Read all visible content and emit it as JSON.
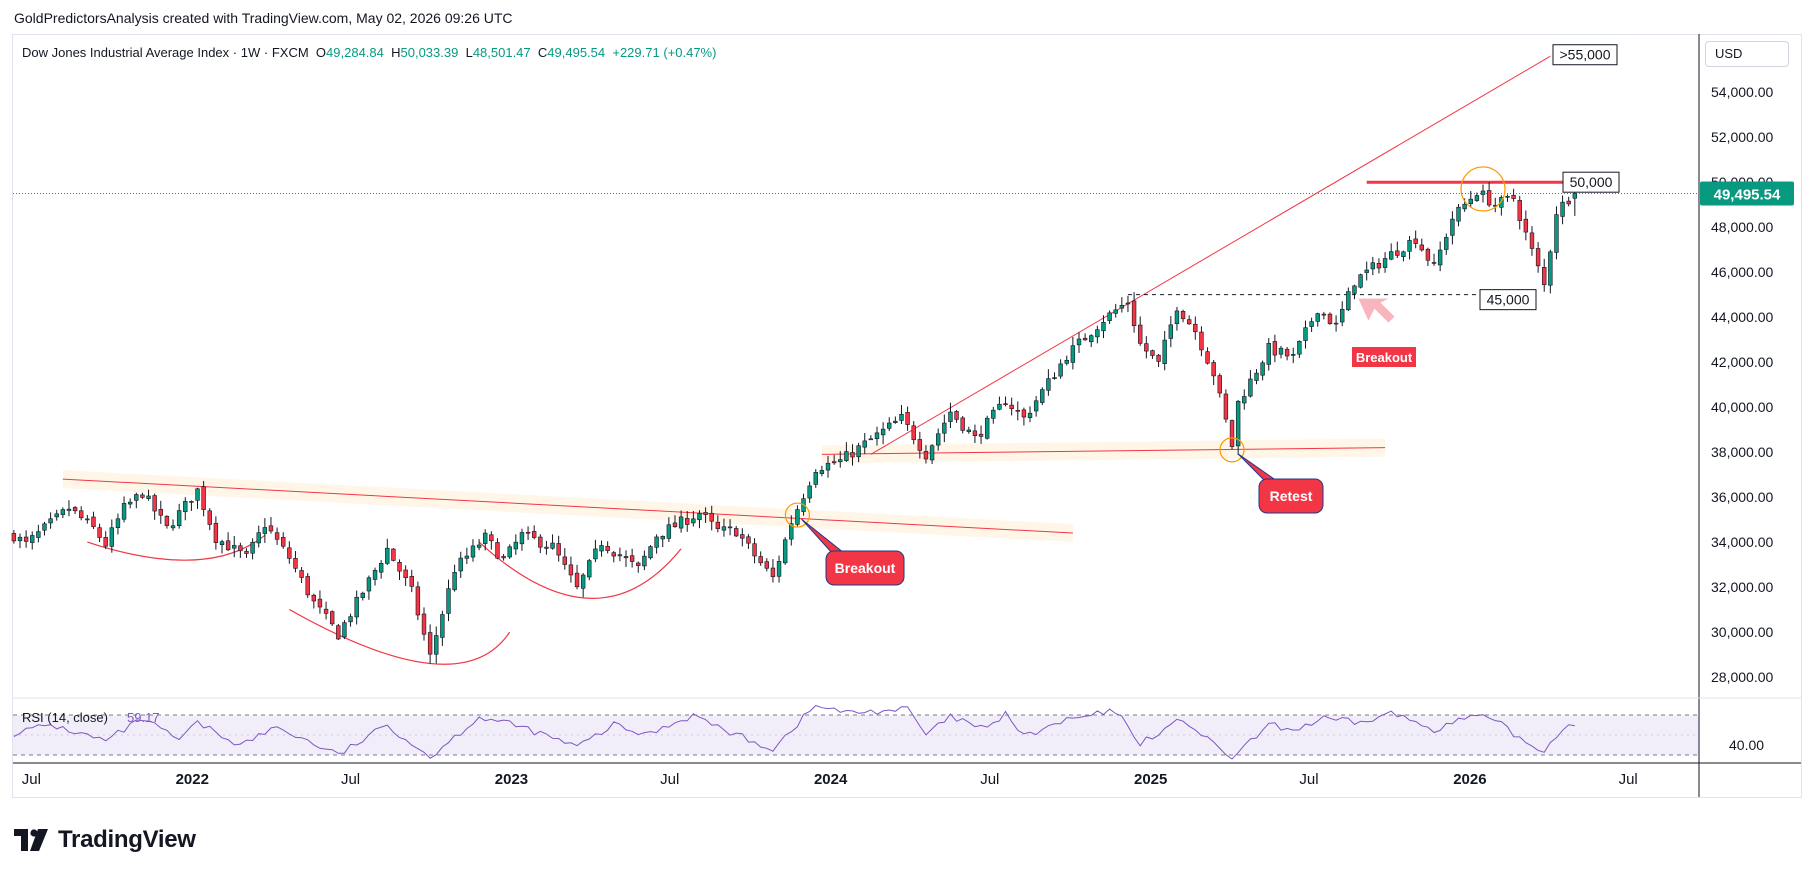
{
  "header": {
    "attribution": "GoldPredictorsAnalysis created with TradingView.com, May 02, 2026 09:26 UTC"
  },
  "legend": {
    "symbol": "Dow Jones Industrial Average Index",
    "interval": "1W",
    "source": "FXCM",
    "o_label": "O",
    "open": "49,284.84",
    "h_label": "H",
    "high": "50,033.39",
    "l_label": "L",
    "low": "48,501.47",
    "c_label": "C",
    "close": "49,495.54",
    "change": "+229.71 (+0.47%)"
  },
  "price_axis": {
    "currency": "USD",
    "ticks": [
      28000,
      30000,
      32000,
      34000,
      36000,
      38000,
      40000,
      42000,
      44000,
      46000,
      48000,
      50000,
      52000,
      54000
    ],
    "tick_labels": [
      "28,000.00",
      "30,000.00",
      "32,000.00",
      "34,000.00",
      "36,000.00",
      "38,000.00",
      "40,000.00",
      "42,000.00",
      "44,000.00",
      "46,000.00",
      "48,000.00",
      "50,000.00",
      "52,000.00",
      "54,000.00"
    ],
    "last_price_label": "49,495.54",
    "last_price": 49495.54
  },
  "time_axis": {
    "labels": [
      "Jul",
      "2022",
      "Jul",
      "2023",
      "Jul",
      "2024",
      "Jul",
      "2025",
      "Jul",
      "2026",
      "Jul"
    ],
    "dates": [
      "2021-07-01",
      "2022-01-01",
      "2022-07-01",
      "2023-01-01",
      "2023-07-01",
      "2024-01-01",
      "2024-07-01",
      "2025-01-01",
      "2025-07-01",
      "2026-01-01",
      "2026-07-01"
    ]
  },
  "chart_data": {
    "type": "candlestick",
    "title": "Dow Jones Industrial Average Index",
    "interval": "1W",
    "y_range": [
      27200,
      56500
    ],
    "x_range": [
      "2021-06-10",
      "2026-09-20"
    ],
    "bull_color": "#089981",
    "bear_color": "#f23645",
    "first_week": "2021-06-11",
    "anchors": [
      [
        "2021-06-11",
        34300
      ],
      [
        "2021-06-25",
        33900
      ],
      [
        "2021-07-16",
        34600
      ],
      [
        "2021-08-13",
        35500
      ],
      [
        "2021-09-10",
        34600
      ],
      [
        "2021-09-24",
        33900
      ],
      [
        "2021-10-15",
        35500
      ],
      [
        "2021-11-05",
        36200
      ],
      [
        "2021-12-03",
        34600
      ],
      [
        "2022-01-07",
        36300
      ],
      [
        "2022-01-28",
        34200
      ],
      [
        "2022-03-04",
        33300
      ],
      [
        "2022-03-25",
        34800
      ],
      [
        "2022-04-22",
        33300
      ],
      [
        "2022-05-20",
        31300
      ],
      [
        "2022-06-17",
        29900
      ],
      [
        "2022-07-08",
        31300
      ],
      [
        "2022-08-12",
        33700
      ],
      [
        "2022-09-09",
        31800
      ],
      [
        "2022-09-30",
        28900
      ],
      [
        "2022-10-28",
        32800
      ],
      [
        "2022-12-02",
        34200
      ],
      [
        "2022-12-23",
        33200
      ],
      [
        "2023-01-13",
        34300
      ],
      [
        "2023-02-17",
        33800
      ],
      [
        "2023-03-17",
        31900
      ],
      [
        "2023-04-14",
        34000
      ],
      [
        "2023-05-26",
        32800
      ],
      [
        "2023-06-16",
        34300
      ],
      [
        "2023-08-04",
        35300
      ],
      [
        "2023-08-25",
        34500
      ],
      [
        "2023-09-15",
        34500
      ],
      [
        "2023-10-06",
        33400
      ],
      [
        "2023-10-27",
        32400
      ],
      [
        "2023-11-17",
        34900
      ],
      [
        "2023-12-15",
        37300
      ],
      [
        "2024-01-12",
        37600
      ],
      [
        "2024-03-22",
        39500
      ],
      [
        "2024-04-19",
        37900
      ],
      [
        "2024-05-17",
        39800
      ],
      [
        "2024-06-14",
        38600
      ],
      [
        "2024-07-19",
        40300
      ],
      [
        "2024-08-09",
        39500
      ],
      [
        "2024-09-27",
        42300
      ],
      [
        "2024-11-08",
        43900
      ],
      [
        "2024-12-06",
        44700
      ],
      [
        "2024-12-20",
        42800
      ],
      [
        "2025-01-10",
        41900
      ],
      [
        "2025-01-31",
        44500
      ],
      [
        "2025-02-21",
        43400
      ],
      [
        "2025-03-14",
        41500
      ],
      [
        "2025-04-04",
        38300
      ],
      [
        "2025-04-11",
        40200
      ],
      [
        "2025-05-16",
        42600
      ],
      [
        "2025-06-13",
        42200
      ],
      [
        "2025-07-11",
        44400
      ],
      [
        "2025-08-01",
        43600
      ],
      [
        "2025-08-22",
        45600
      ],
      [
        "2025-10-03",
        46800
      ],
      [
        "2025-10-31",
        47500
      ],
      [
        "2025-11-21",
        46200
      ],
      [
        "2025-12-12",
        48400
      ],
      [
        "2026-01-09",
        49600
      ],
      [
        "2026-01-30",
        49000
      ],
      [
        "2026-02-20",
        49300
      ],
      [
        "2026-03-06",
        47700
      ],
      [
        "2026-03-27",
        45400
      ],
      [
        "2026-04-10",
        48700
      ],
      [
        "2026-04-24",
        49284.84
      ],
      [
        "2026-05-01",
        49495.54
      ]
    ],
    "last_bar": {
      "date": "2026-05-01",
      "open": 49284.84,
      "high": 50033.39,
      "low": 48501.47,
      "close": 49495.54
    },
    "levels": [
      {
        "label": ">55,000",
        "value": 55000
      },
      {
        "label": "50,000",
        "value": 50000
      },
      {
        "label": "45,000",
        "value": 45000
      }
    ],
    "annotations": [
      {
        "text": "Breakout",
        "date": "2023-11-24",
        "price": 35200
      },
      {
        "text": "Retest",
        "date": "2025-04-04",
        "price": 38100
      },
      {
        "text": "Breakout",
        "date": "2025-08-22",
        "price": 45000
      }
    ],
    "trendlines": [
      {
        "kind": "neckline",
        "from": [
          "2021-08-06",
          36800
        ],
        "to": [
          "2024-10-04",
          34400
        ]
      },
      {
        "kind": "support",
        "from": [
          "2023-12-22",
          37900
        ],
        "to": [
          "2025-09-26",
          38200
        ]
      },
      {
        "kind": "channel-top",
        "from": [
          "2024-02-16",
          37900
        ],
        "to": [
          "2026-04-03",
          55600
        ]
      },
      {
        "kind": "resistance",
        "from": [
          "2025-09-05",
          50000
        ],
        "to": [
          "2026-04-17",
          50000
        ]
      },
      {
        "kind": "dashed",
        "from": [
          "2024-12-06",
          45000
        ],
        "to": [
          "2026-02-06",
          45000
        ]
      }
    ],
    "arcs": [
      {
        "from": [
          "2021-09-03",
          34000
        ],
        "bottom": [
          "2021-12-31",
          33200
        ],
        "to": [
          "2022-03-25",
          34300
        ]
      },
      {
        "from": [
          "2022-04-22",
          31000
        ],
        "bottom": [
          "2022-09-30",
          28600
        ],
        "to": [
          "2022-12-30",
          30000
        ]
      },
      {
        "from": [
          "2022-11-25",
          34000
        ],
        "bottom": [
          "2023-03-31",
          31500
        ],
        "to": [
          "2023-07-14",
          33700
        ]
      }
    ],
    "circles": [
      {
        "date": "2023-11-24",
        "price": 35200
      },
      {
        "date": "2025-04-04",
        "price": 38100
      },
      {
        "date": "2026-01-16",
        "price": 49700
      }
    ]
  },
  "rsi": {
    "label": "RSI (14, close)",
    "value_label": "59.17",
    "value": 59.17,
    "tick_label": "40.00",
    "tick": 40,
    "upper_band": 70,
    "lower_band": 30,
    "range": [
      25,
      80
    ],
    "line_color": "#7e57c2",
    "anchors": [
      [
        "2021-06-11",
        52
      ],
      [
        "2021-07-23",
        60
      ],
      [
        "2021-09-24",
        44
      ],
      [
        "2021-11-05",
        66
      ],
      [
        "2021-12-17",
        45
      ],
      [
        "2022-01-07",
        62
      ],
      [
        "2022-02-25",
        40
      ],
      [
        "2022-04-08",
        58
      ],
      [
        "2022-06-17",
        30
      ],
      [
        "2022-08-12",
        60
      ],
      [
        "2022-09-30",
        28
      ],
      [
        "2022-11-25",
        68
      ],
      [
        "2023-01-13",
        58
      ],
      [
        "2023-03-17",
        38
      ],
      [
        "2023-04-28",
        60
      ],
      [
        "2023-06-02",
        50
      ],
      [
        "2023-07-28",
        70
      ],
      [
        "2023-09-01",
        55
      ],
      [
        "2023-10-27",
        36
      ],
      [
        "2023-12-15",
        80
      ],
      [
        "2024-01-19",
        72
      ],
      [
        "2024-03-29",
        76
      ],
      [
        "2024-04-19",
        50
      ],
      [
        "2024-05-17",
        68
      ],
      [
        "2024-06-28",
        55
      ],
      [
        "2024-07-19",
        72
      ],
      [
        "2024-08-09",
        48
      ],
      [
        "2024-09-27",
        65
      ],
      [
        "2024-11-22",
        74
      ],
      [
        "2024-12-20",
        42
      ],
      [
        "2025-02-07",
        66
      ],
      [
        "2025-03-14",
        40
      ],
      [
        "2025-04-04",
        26
      ],
      [
        "2025-05-16",
        60
      ],
      [
        "2025-06-13",
        55
      ],
      [
        "2025-07-18",
        66
      ],
      [
        "2025-08-29",
        62
      ],
      [
        "2025-10-03",
        72
      ],
      [
        "2025-11-21",
        56
      ],
      [
        "2026-01-09",
        70
      ],
      [
        "2026-02-06",
        60
      ],
      [
        "2026-03-06",
        42
      ],
      [
        "2026-03-27",
        34
      ],
      [
        "2026-04-17",
        58
      ],
      [
        "2026-05-01",
        59.17
      ]
    ]
  },
  "footer": {
    "brand": "TradingView"
  }
}
